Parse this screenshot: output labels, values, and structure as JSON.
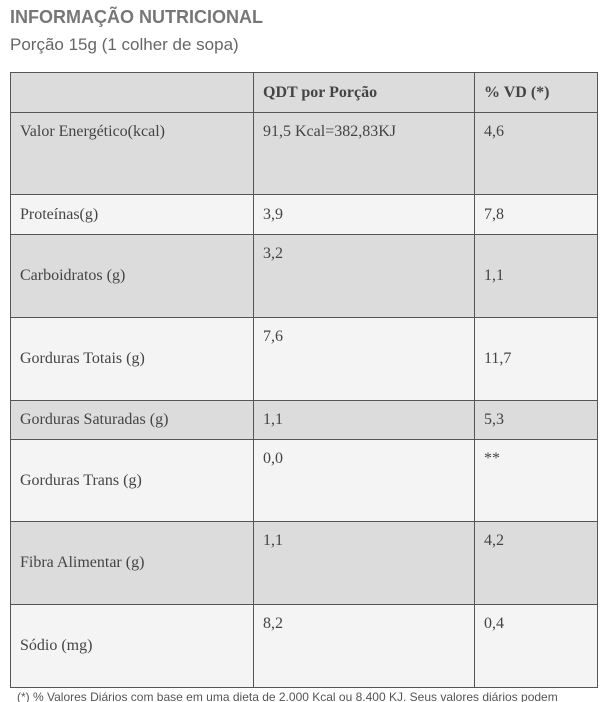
{
  "header": {
    "title": "INFORMAÇÃO NUTRICIONAL",
    "subtitle": "Porção 15g (1 colher de sopa)"
  },
  "table": {
    "columns": [
      "",
      "QDT por Porção",
      "% VD (*)"
    ],
    "rows": [
      [
        "Valor Energético(kcal)",
        "91,5 Kcal=382,83KJ",
        "4,6"
      ],
      [
        "Proteínas(g)",
        "3,9",
        "7,8"
      ],
      [
        "Carboidratos (g)",
        "3,2",
        "1,1"
      ],
      [
        "Gorduras Totais (g)",
        "7,6",
        "11,7"
      ],
      [
        "Gorduras Saturadas (g)",
        "1,1",
        "5,3"
      ],
      [
        "Gorduras Trans (g)",
        "0,0",
        "**"
      ],
      [
        "Fibra Alimentar (g)",
        "1,1",
        "4,2"
      ],
      [
        "Sódio (mg)",
        "8,2",
        "0,4"
      ]
    ]
  },
  "footnote": "(*) % Valores Diários com base em uma dieta de 2.000 Kcal ou 8.400 KJ. Seus valores diários podem"
}
